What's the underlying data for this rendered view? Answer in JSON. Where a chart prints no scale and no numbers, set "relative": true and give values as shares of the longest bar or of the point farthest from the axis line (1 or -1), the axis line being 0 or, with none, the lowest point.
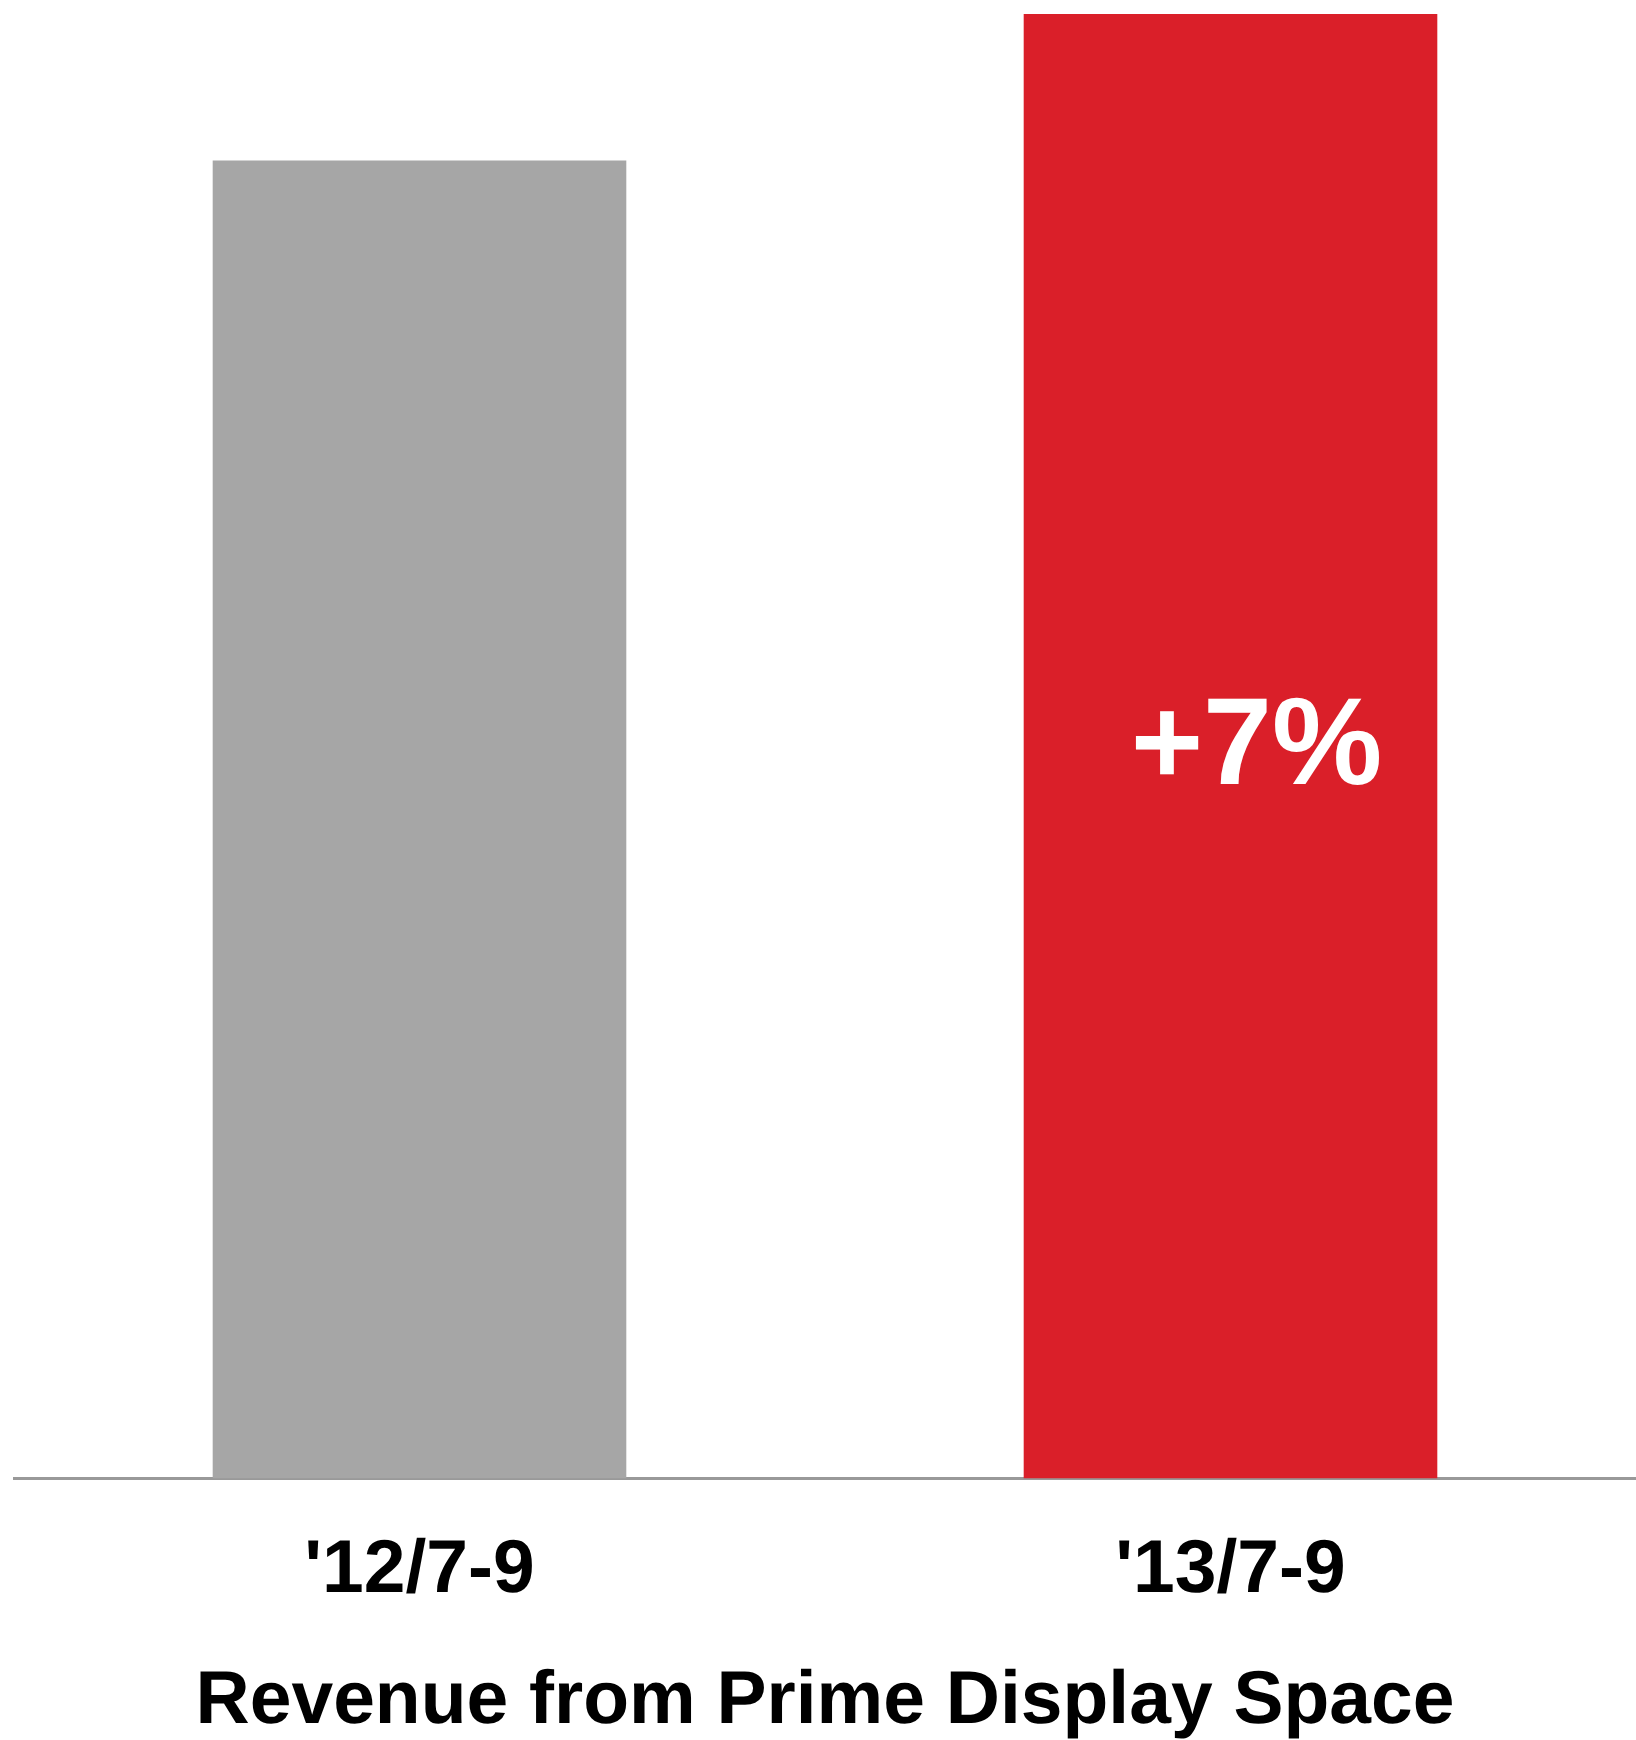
{
  "chart_data": {
    "type": "bar",
    "relative": true,
    "xlabel": "Revenue from Prime Display Space",
    "categories": [
      "'12/7-9",
      "'13/7-9"
    ],
    "series": [
      {
        "values": [
          0.9,
          1
        ],
        "colors": [
          "#a6a6a6",
          "#da1f29"
        ]
      }
    ],
    "annotations": [
      "+7%"
    ],
    "grid": false,
    "legend": false
  }
}
